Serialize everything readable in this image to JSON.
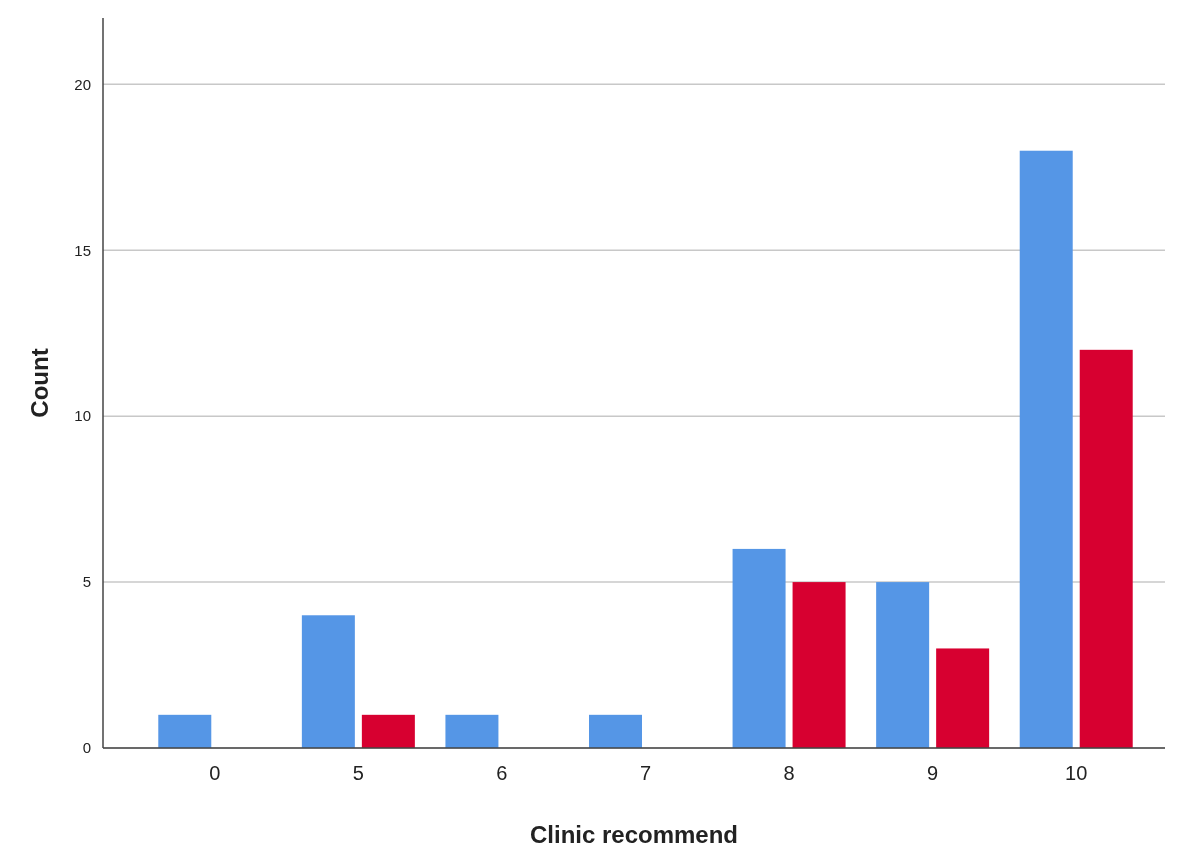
{
  "chart_data": {
    "type": "bar",
    "xlabel": "Clinic recommend",
    "ylabel": "Count",
    "categories": [
      "0",
      "5",
      "6",
      "7",
      "8",
      "9",
      "10"
    ],
    "series": [
      {
        "color": "#5596e6",
        "values": [
          1,
          4,
          1,
          1,
          6,
          5,
          18
        ]
      },
      {
        "color": "#d70030",
        "values": [
          null,
          1,
          null,
          null,
          5,
          3,
          12
        ]
      }
    ],
    "ylim": [
      0,
      22
    ],
    "yticks": [
      0,
      5,
      10,
      15,
      20
    ],
    "grid": "y"
  }
}
